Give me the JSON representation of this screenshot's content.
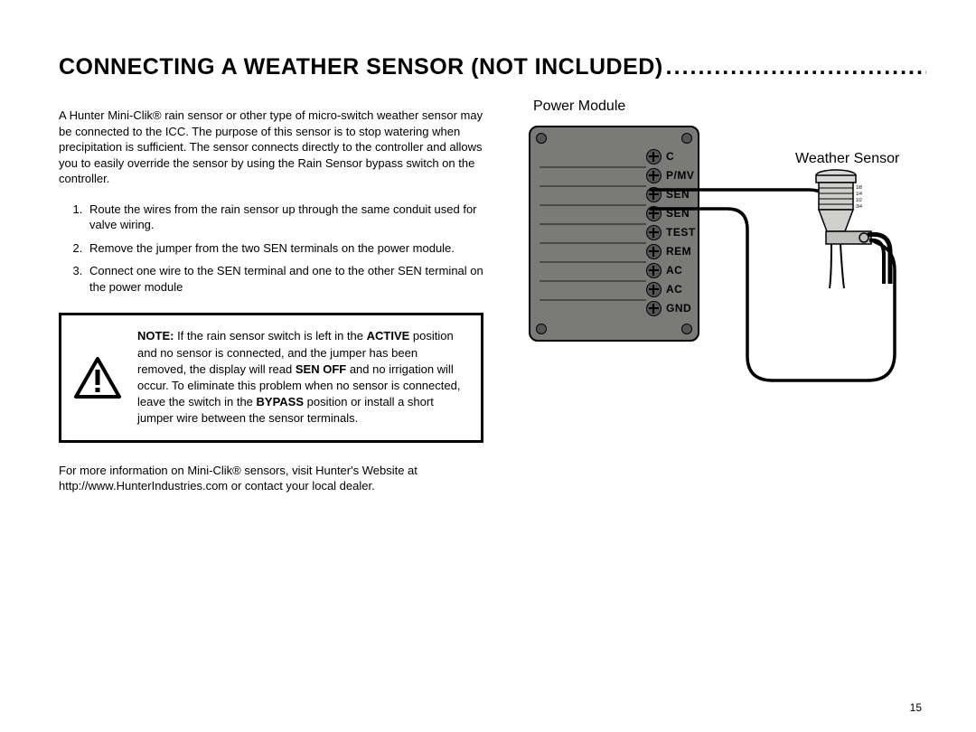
{
  "heading": "CONNECTING A WEATHER SENSOR (NOT INCLUDED)",
  "intro": "A Hunter Mini-Clik® rain sensor or other type of micro-switch weather sensor may be connected to the ICC. The purpose of this sensor is to stop watering when precipitation is sufficient. The sensor connects directly to the controller and allows you to easily override the sensor by using the Rain Sensor bypass switch on the controller.",
  "steps": [
    "Route the wires from the rain sensor up through the same conduit used for valve wiring.",
    "Remove the jumper from the two SEN terminals on the power module.",
    "Connect one wire to the SEN terminal and one to the other SEN terminal on the power module"
  ],
  "note": {
    "prefix": "NOTE:",
    "part1": " If the rain sensor switch is left in the ",
    "b1": "ACTIVE",
    "part2": " position and no sensor is connected, and the jumper has been removed, the display will read ",
    "b2": "SEN OFF",
    "part3": " and no irrigation will occur. To eliminate this problem when no sensor is connected, leave the switch in the ",
    "b3": "BYPASS",
    "part4": " position or install a short jumper wire between the sensor terminals."
  },
  "more_info": "For more information on Mini-Clik® sensors, visit Hunter's Website at http://www.HunterIndustries.com or contact your local dealer.",
  "page_number": "15",
  "diagram": {
    "power_module_label": "Power Module",
    "weather_sensor_label": "Weather Sensor",
    "terminals": [
      "C",
      "P/MV",
      "SEN",
      "SEN",
      "TEST",
      "REM",
      "AC",
      "AC",
      "GND"
    ],
    "module_color": "#7a7a78",
    "border_color": "#000000",
    "wire_color": "#000000"
  }
}
